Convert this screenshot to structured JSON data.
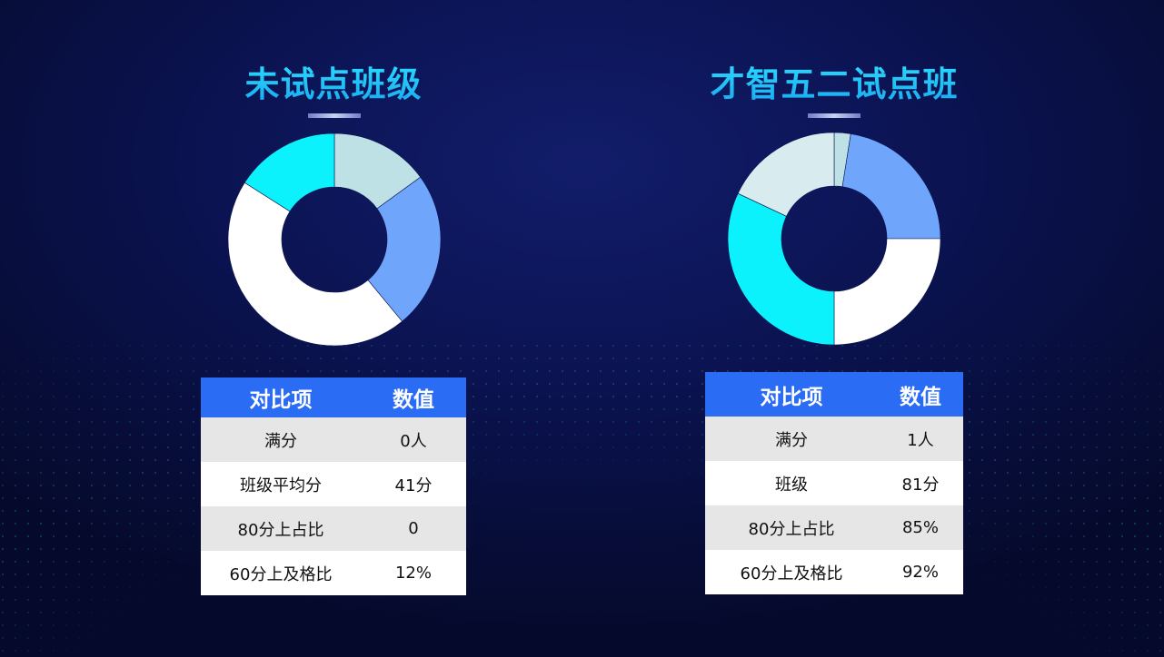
{
  "panels": [
    {
      "title": "未试点班级",
      "table": {
        "headers": [
          "对比项",
          "数值"
        ],
        "rows": [
          [
            "满分",
            "0人"
          ],
          [
            "班级平均分",
            "41分"
          ],
          [
            "80分上占比",
            "0"
          ],
          [
            "60分上及格比",
            "12%"
          ]
        ]
      }
    },
    {
      "title": "才智五二试点班",
      "table": {
        "headers": [
          "对比项",
          "数值"
        ],
        "rows": [
          [
            "满分",
            "1人"
          ],
          [
            "班级",
            "81分"
          ],
          [
            "80分上占比",
            "85%"
          ],
          [
            "60分上及格比",
            "92%"
          ]
        ]
      }
    }
  ],
  "chart_data": [
    {
      "type": "pie",
      "donut": true,
      "values": [
        15,
        24,
        45,
        16
      ],
      "colors": [
        "#bde1e4",
        "#6fa5fa",
        "#ffffff",
        "#0cf2fd"
      ],
      "start_angle_deg": 0,
      "direction": "clockwise"
    },
    {
      "type": "pie",
      "donut": true,
      "values": [
        2.5,
        22.5,
        25,
        32,
        18
      ],
      "colors": [
        "#bde1e4",
        "#6fa5fa",
        "#ffffff",
        "#0cf2fd",
        "#d8ecf0"
      ],
      "start_angle_deg": 0,
      "direction": "clockwise"
    }
  ]
}
